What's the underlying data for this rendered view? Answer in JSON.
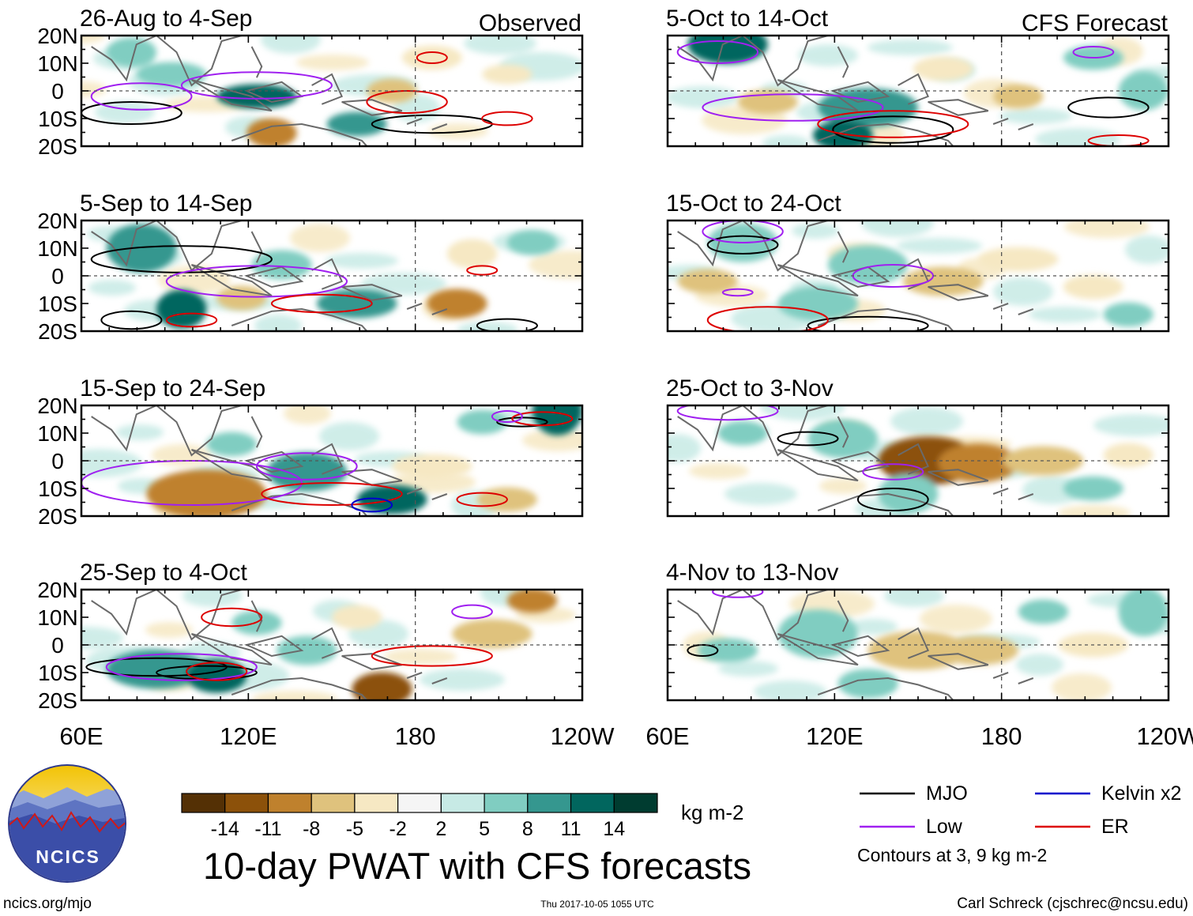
{
  "chart_data": {
    "type": "heatmap",
    "title": "10-day PWAT with CFS forecasts",
    "units": "kg m-2",
    "x_ticks": [
      "60E",
      "120E",
      "180",
      "120W"
    ],
    "x_tick_lon": [
      60,
      120,
      180,
      240
    ],
    "y_ticks": [
      "20N",
      "10N",
      "0",
      "10S",
      "20S"
    ],
    "y_tick_lat": [
      20,
      10,
      0,
      -10,
      -20
    ],
    "xlim": [
      60,
      240
    ],
    "ylim": [
      -20,
      20
    ],
    "observed_label": "Observed",
    "forecast_label": "CFS Forecast",
    "observed_panels": [
      "26-Aug to 4-Sep",
      "5-Sep to 14-Sep",
      "15-Sep to 24-Sep",
      "25-Sep to 4-Oct"
    ],
    "forecast_panels": [
      "5-Oct to 14-Oct",
      "15-Oct to 24-Oct",
      "25-Oct to 3-Nov",
      "4-Nov to 13-Nov"
    ],
    "colorbar": {
      "levels": [
        -14,
        -11,
        -8,
        -5,
        -2,
        2,
        5,
        8,
        11,
        14
      ],
      "labels": [
        "-14",
        "-11",
        "-8",
        "-5",
        "-2",
        "2",
        "5",
        "8",
        "11",
        "14"
      ],
      "colors": [
        "#543005",
        "#8c510a",
        "#bf812d",
        "#dfc27d",
        "#f6e8c3",
        "#f5f5f5",
        "#c7eae5",
        "#80cdc1",
        "#35978f",
        "#01665e",
        "#003c30"
      ]
    },
    "legend": [
      {
        "label": "MJO",
        "color": "#000000"
      },
      {
        "label": "Kelvin x2",
        "color": "#0000cc"
      },
      {
        "label": "Low",
        "color": "#a020f0"
      },
      {
        "label": "ER",
        "color": "#dd0000"
      }
    ],
    "contour_note": "Contours at 3, 9 kg m-2"
  },
  "footer": {
    "logo_text": "NCICS",
    "url": "ncics.org/mjo",
    "timestamp": "Thu 2017-10-05 1055 UTC",
    "author": "Carl Schreck (cjschrec@ncsu.edu)"
  }
}
